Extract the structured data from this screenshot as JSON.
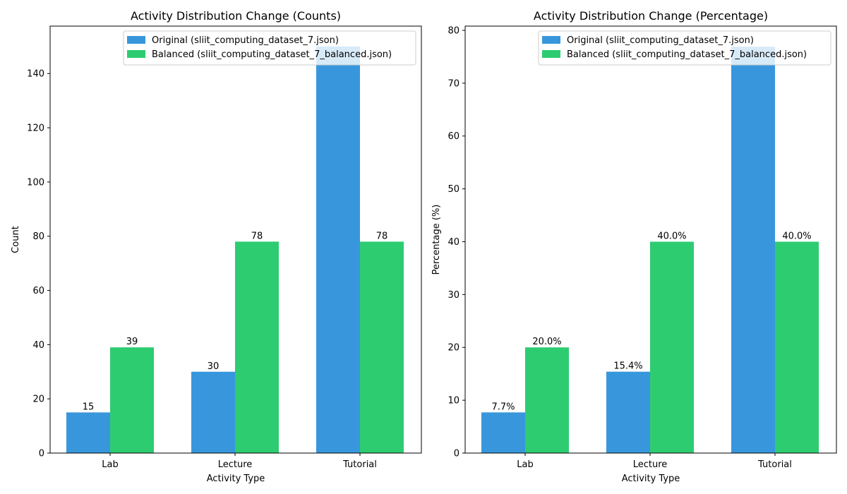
{
  "colors": {
    "original": "#3897dc",
    "balanced": "#2ecc71",
    "axis": "#000000",
    "background": "#ffffff",
    "legend_border": "#cccccc"
  },
  "chart_data": [
    {
      "type": "bar",
      "title": "Activity Distribution Change (Counts)",
      "xlabel": "Activity Type",
      "ylabel": "Count",
      "categories": [
        "Lab",
        "Lecture",
        "Tutorial"
      ],
      "ylim": [
        0,
        157.5
      ],
      "yticks": [
        0,
        20,
        40,
        60,
        80,
        100,
        120,
        140
      ],
      "ytick_labels": [
        "0",
        "20",
        "40",
        "60",
        "80",
        "100",
        "120",
        "140"
      ],
      "grid": false,
      "legend_position": "top-right",
      "series": [
        {
          "name": "Original (sliit_computing_dataset_7.json)",
          "color_key": "original",
          "values": [
            15,
            30,
            150
          ],
          "labels": [
            "15",
            "30",
            ""
          ]
        },
        {
          "name": "Balanced (sliit_computing_dataset_7_balanced.json)",
          "color_key": "balanced",
          "values": [
            39,
            78,
            78
          ],
          "labels": [
            "39",
            "78",
            "78"
          ]
        }
      ]
    },
    {
      "type": "bar",
      "title": "Activity Distribution Change (Percentage)",
      "xlabel": "Activity Type",
      "ylabel": "Percentage (%)",
      "categories": [
        "Lab",
        "Lecture",
        "Tutorial"
      ],
      "ylim": [
        0,
        80.8
      ],
      "yticks": [
        0,
        10,
        20,
        30,
        40,
        50,
        60,
        70,
        80
      ],
      "ytick_labels": [
        "0",
        "10",
        "20",
        "30",
        "40",
        "50",
        "60",
        "70",
        "80"
      ],
      "grid": false,
      "legend_position": "top-right",
      "series": [
        {
          "name": "Original (sliit_computing_dataset_7.json)",
          "color_key": "original",
          "values": [
            7.7,
            15.4,
            76.9
          ],
          "labels": [
            "7.7%",
            "15.4%",
            ""
          ]
        },
        {
          "name": "Balanced (sliit_computing_dataset_7_balanced.json)",
          "color_key": "balanced",
          "values": [
            20.0,
            40.0,
            40.0
          ],
          "labels": [
            "20.0%",
            "40.0%",
            "40.0%"
          ]
        }
      ]
    }
  ]
}
